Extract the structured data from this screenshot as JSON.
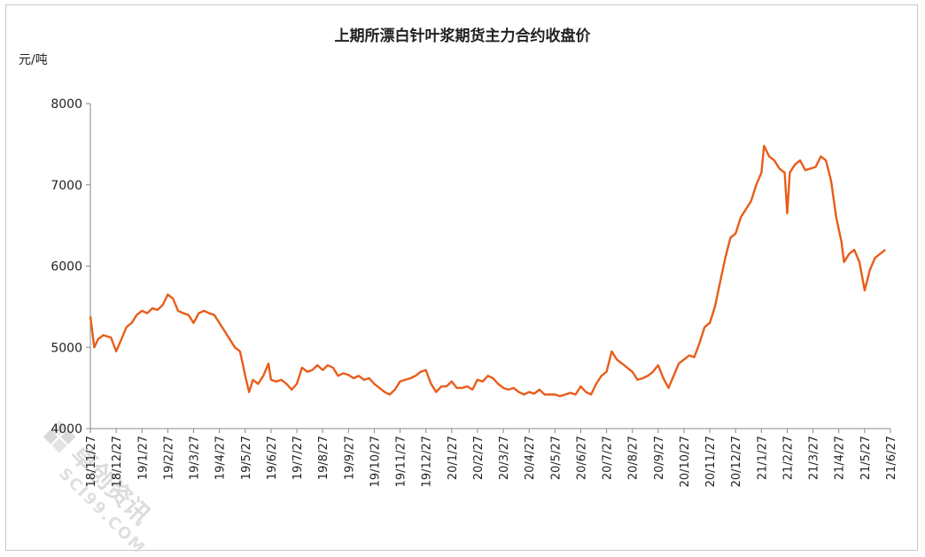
{
  "chart_data": {
    "type": "line",
    "title": "上期所漂白针叶浆期货主力合约收盘价",
    "ylabel": "元/吨",
    "xlabel": "",
    "ylim": [
      4000,
      8000
    ],
    "yticks": [
      4000,
      5000,
      6000,
      7000,
      8000
    ],
    "grid": false,
    "legend": "none",
    "line_color": "#e85d1a",
    "categories": [
      "18/11/27",
      "18/12/27",
      "19/1/27",
      "19/2/27",
      "19/3/27",
      "19/4/27",
      "19/5/27",
      "19/6/27",
      "19/7/27",
      "19/8/27",
      "19/9/27",
      "19/10/27",
      "19/11/27",
      "19/12/27",
      "20/1/27",
      "20/2/27",
      "20/3/27",
      "20/4/27",
      "20/5/27",
      "20/6/27",
      "20/7/27",
      "20/8/27",
      "20/9/27",
      "20/10/27",
      "20/11/27",
      "20/12/27",
      "21/1/27",
      "21/2/27",
      "21/3/27",
      "21/4/27",
      "21/5/27",
      "21/6/27"
    ],
    "series": [
      {
        "values": [
          [
            0.0,
            5380
          ],
          [
            0.15,
            5000
          ],
          [
            0.3,
            5100
          ],
          [
            0.5,
            5150
          ],
          [
            0.8,
            5120
          ],
          [
            1.0,
            4950
          ],
          [
            1.2,
            5100
          ],
          [
            1.4,
            5250
          ],
          [
            1.6,
            5300
          ],
          [
            1.8,
            5400
          ],
          [
            2.0,
            5450
          ],
          [
            2.2,
            5420
          ],
          [
            2.4,
            5480
          ],
          [
            2.6,
            5460
          ],
          [
            2.8,
            5520
          ],
          [
            3.0,
            5650
          ],
          [
            3.2,
            5600
          ],
          [
            3.4,
            5450
          ],
          [
            3.6,
            5420
          ],
          [
            3.8,
            5400
          ],
          [
            4.0,
            5300
          ],
          [
            4.2,
            5420
          ],
          [
            4.4,
            5450
          ],
          [
            4.6,
            5420
          ],
          [
            4.8,
            5400
          ],
          [
            5.0,
            5300
          ],
          [
            5.2,
            5200
          ],
          [
            5.4,
            5100
          ],
          [
            5.6,
            5000
          ],
          [
            5.8,
            4950
          ],
          [
            6.0,
            4650
          ],
          [
            6.15,
            4450
          ],
          [
            6.3,
            4600
          ],
          [
            6.5,
            4550
          ],
          [
            6.7,
            4650
          ],
          [
            6.9,
            4800
          ],
          [
            7.0,
            4600
          ],
          [
            7.2,
            4580
          ],
          [
            7.4,
            4600
          ],
          [
            7.6,
            4550
          ],
          [
            7.8,
            4480
          ],
          [
            8.0,
            4550
          ],
          [
            8.2,
            4750
          ],
          [
            8.4,
            4700
          ],
          [
            8.6,
            4720
          ],
          [
            8.8,
            4780
          ],
          [
            9.0,
            4720
          ],
          [
            9.2,
            4780
          ],
          [
            9.4,
            4750
          ],
          [
            9.6,
            4650
          ],
          [
            9.8,
            4680
          ],
          [
            10.0,
            4660
          ],
          [
            10.2,
            4620
          ],
          [
            10.4,
            4650
          ],
          [
            10.6,
            4600
          ],
          [
            10.8,
            4620
          ],
          [
            11.0,
            4550
          ],
          [
            11.2,
            4500
          ],
          [
            11.4,
            4450
          ],
          [
            11.6,
            4420
          ],
          [
            11.8,
            4480
          ],
          [
            12.0,
            4580
          ],
          [
            12.2,
            4600
          ],
          [
            12.4,
            4620
          ],
          [
            12.6,
            4650
          ],
          [
            12.8,
            4700
          ],
          [
            13.0,
            4720
          ],
          [
            13.2,
            4550
          ],
          [
            13.4,
            4450
          ],
          [
            13.6,
            4520
          ],
          [
            13.8,
            4520
          ],
          [
            14.0,
            4580
          ],
          [
            14.2,
            4500
          ],
          [
            14.4,
            4500
          ],
          [
            14.6,
            4520
          ],
          [
            14.8,
            4480
          ],
          [
            15.0,
            4600
          ],
          [
            15.2,
            4580
          ],
          [
            15.4,
            4650
          ],
          [
            15.6,
            4620
          ],
          [
            15.8,
            4550
          ],
          [
            16.0,
            4500
          ],
          [
            16.2,
            4480
          ],
          [
            16.4,
            4500
          ],
          [
            16.6,
            4450
          ],
          [
            16.8,
            4420
          ],
          [
            17.0,
            4450
          ],
          [
            17.2,
            4430
          ],
          [
            17.4,
            4480
          ],
          [
            17.6,
            4420
          ],
          [
            17.8,
            4420
          ],
          [
            18.0,
            4420
          ],
          [
            18.2,
            4400
          ],
          [
            18.4,
            4420
          ],
          [
            18.6,
            4440
          ],
          [
            18.8,
            4420
          ],
          [
            19.0,
            4520
          ],
          [
            19.2,
            4450
          ],
          [
            19.4,
            4420
          ],
          [
            19.6,
            4550
          ],
          [
            19.8,
            4650
          ],
          [
            20.0,
            4700
          ],
          [
            20.2,
            4950
          ],
          [
            20.4,
            4850
          ],
          [
            20.6,
            4800
          ],
          [
            20.8,
            4750
          ],
          [
            21.0,
            4700
          ],
          [
            21.2,
            4600
          ],
          [
            21.4,
            4620
          ],
          [
            21.6,
            4650
          ],
          [
            21.8,
            4700
          ],
          [
            22.0,
            4780
          ],
          [
            22.2,
            4620
          ],
          [
            22.4,
            4500
          ],
          [
            22.6,
            4650
          ],
          [
            22.8,
            4800
          ],
          [
            23.0,
            4850
          ],
          [
            23.2,
            4900
          ],
          [
            23.4,
            4880
          ],
          [
            23.6,
            5050
          ],
          [
            23.8,
            5250
          ],
          [
            24.0,
            5300
          ],
          [
            24.2,
            5500
          ],
          [
            24.4,
            5800
          ],
          [
            24.6,
            6100
          ],
          [
            24.8,
            6350
          ],
          [
            25.0,
            6400
          ],
          [
            25.2,
            6600
          ],
          [
            25.4,
            6700
          ],
          [
            25.6,
            6800
          ],
          [
            25.8,
            7000
          ],
          [
            26.0,
            7150
          ],
          [
            26.1,
            7480
          ],
          [
            26.3,
            7350
          ],
          [
            26.5,
            7300
          ],
          [
            26.7,
            7200
          ],
          [
            26.9,
            7150
          ],
          [
            27.0,
            6650
          ],
          [
            27.1,
            7150
          ],
          [
            27.3,
            7250
          ],
          [
            27.5,
            7300
          ],
          [
            27.7,
            7180
          ],
          [
            27.9,
            7200
          ],
          [
            28.1,
            7220
          ],
          [
            28.3,
            7350
          ],
          [
            28.5,
            7300
          ],
          [
            28.7,
            7050
          ],
          [
            28.9,
            6600
          ],
          [
            29.1,
            6300
          ],
          [
            29.2,
            6050
          ],
          [
            29.4,
            6150
          ],
          [
            29.6,
            6200
          ],
          [
            29.8,
            6050
          ],
          [
            30.0,
            5700
          ],
          [
            30.2,
            5950
          ],
          [
            30.4,
            6100
          ],
          [
            30.6,
            6150
          ],
          [
            30.8,
            6200
          ]
        ]
      }
    ]
  },
  "watermark": {
    "text_cn": "卓创资讯",
    "text_en": "SCI99.COM"
  }
}
